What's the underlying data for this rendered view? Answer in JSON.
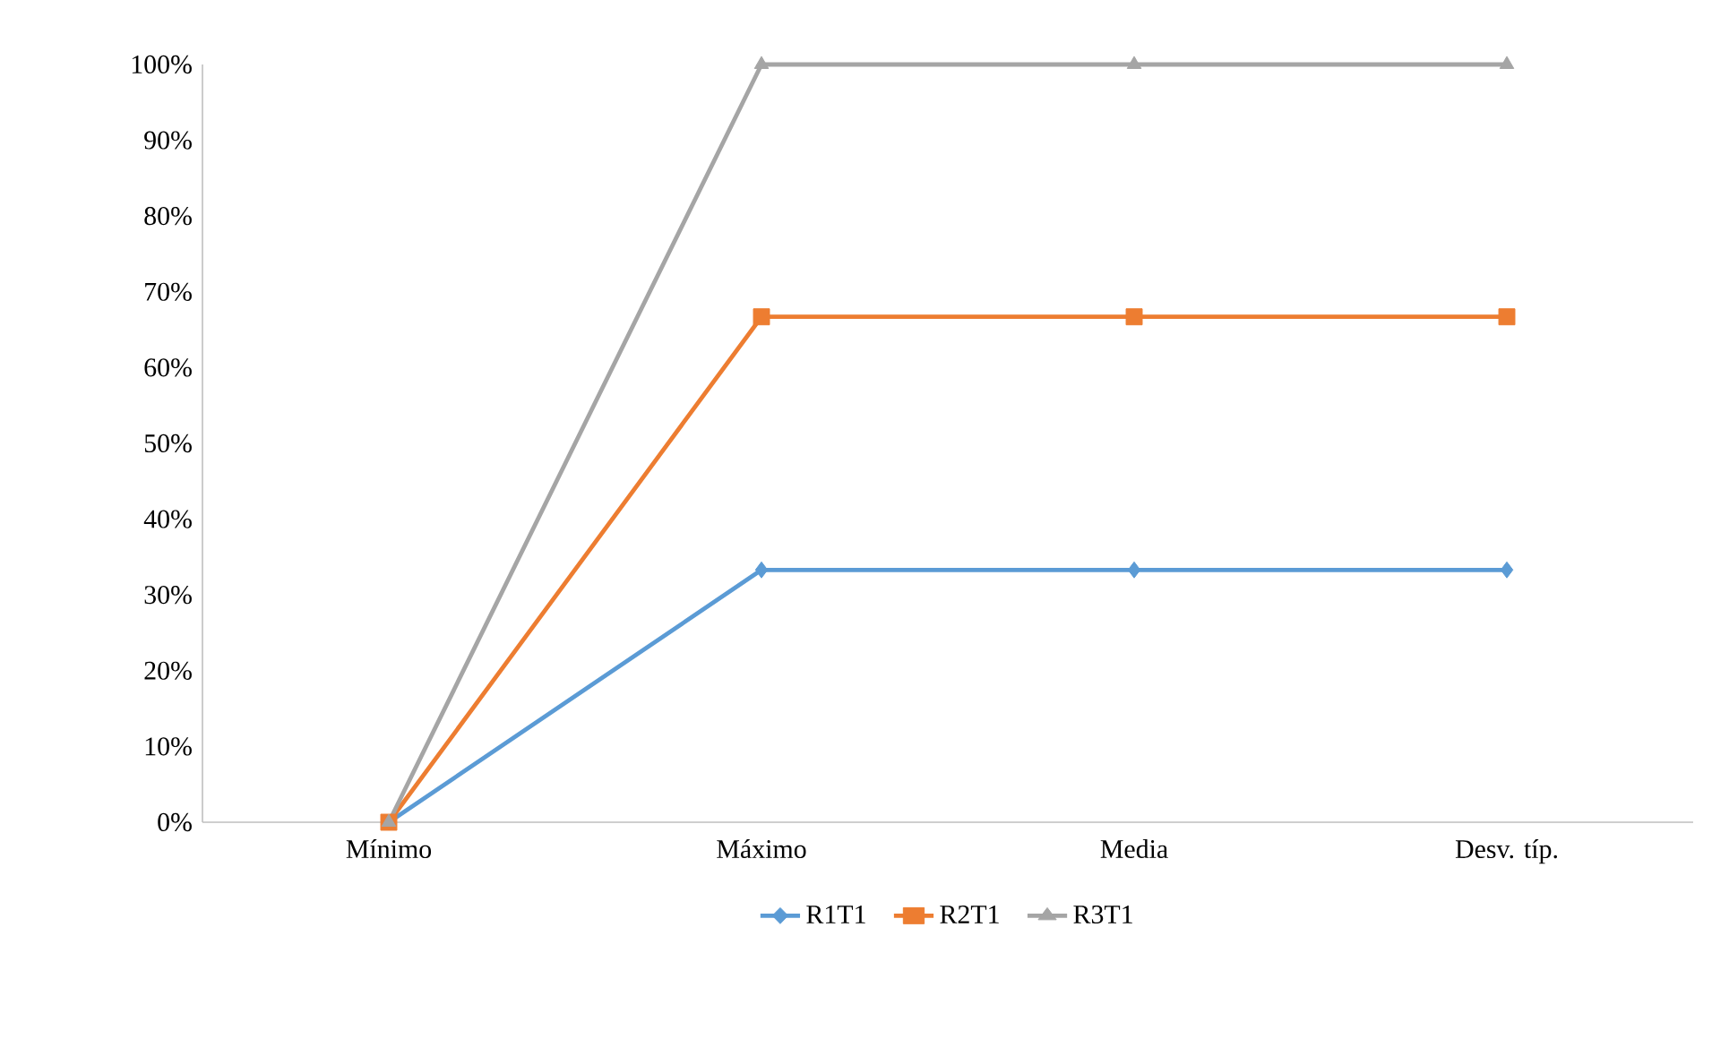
{
  "chart_data": {
    "type": "line",
    "categories": [
      "Mínimo",
      "Máximo",
      "Media",
      "Desv. típ."
    ],
    "series": [
      {
        "name": "R1T1",
        "color": "#5b9bd5",
        "marker": "diamond",
        "values": [
          0,
          33.3,
          33.3,
          33.3
        ]
      },
      {
        "name": "R2T1",
        "color": "#ed7d31",
        "marker": "square",
        "values": [
          0,
          66.7,
          66.7,
          66.7
        ]
      },
      {
        "name": "R3T1",
        "color": "#a5a5a5",
        "marker": "triangle",
        "values": [
          0,
          100,
          100,
          100
        ]
      }
    ],
    "ylim": [
      0,
      100
    ],
    "yticks": [
      {
        "value": 0,
        "label": "0%"
      },
      {
        "value": 10,
        "label": "10%"
      },
      {
        "value": 20,
        "label": "20%"
      },
      {
        "value": 30,
        "label": "30%"
      },
      {
        "value": 40,
        "label": "40%"
      },
      {
        "value": 50,
        "label": "50%"
      },
      {
        "value": 60,
        "label": "60%"
      },
      {
        "value": 70,
        "label": "70%"
      },
      {
        "value": 80,
        "label": "80%"
      },
      {
        "value": 90,
        "label": "90%"
      },
      {
        "value": 100,
        "label": "100%"
      }
    ],
    "legend": "bottom",
    "line_style": "solid"
  }
}
